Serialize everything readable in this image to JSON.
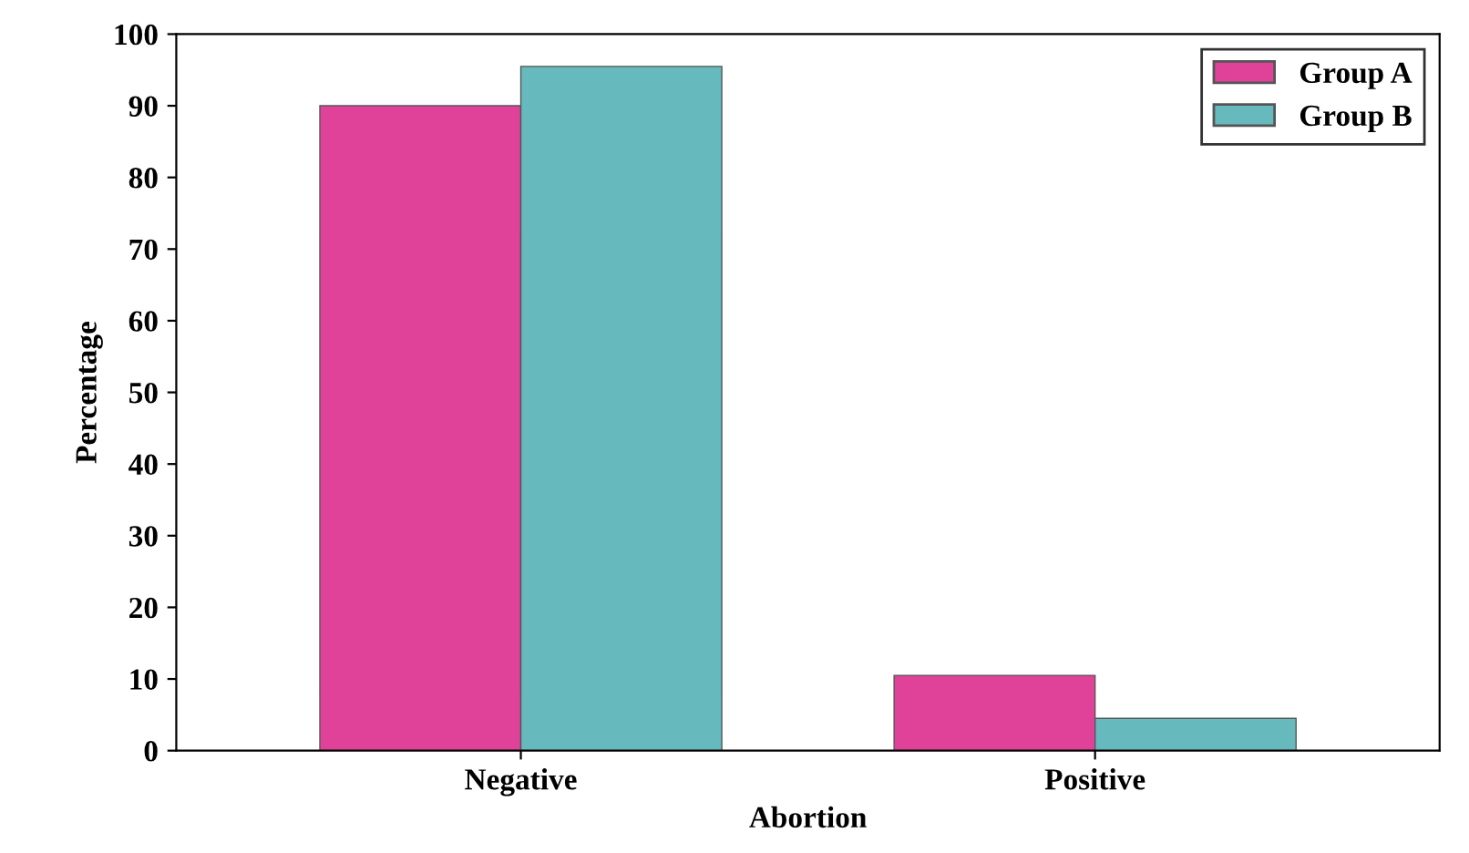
{
  "chart_data": {
    "type": "bar",
    "xlabel": "Abortion",
    "ylabel": "Percentage",
    "categories": [
      "Negative",
      "Positive"
    ],
    "series": [
      {
        "name": "Group A",
        "color": "#e0429a",
        "values": [
          90,
          10.5
        ]
      },
      {
        "name": "Group B",
        "color": "#66b9bc",
        "values": [
          95.5,
          4.5
        ]
      }
    ],
    "ylim": [
      0,
      100
    ],
    "yticks": [
      0,
      10,
      20,
      30,
      40,
      50,
      60,
      70,
      80,
      90,
      100
    ],
    "grid": false,
    "legend": "top right"
  }
}
